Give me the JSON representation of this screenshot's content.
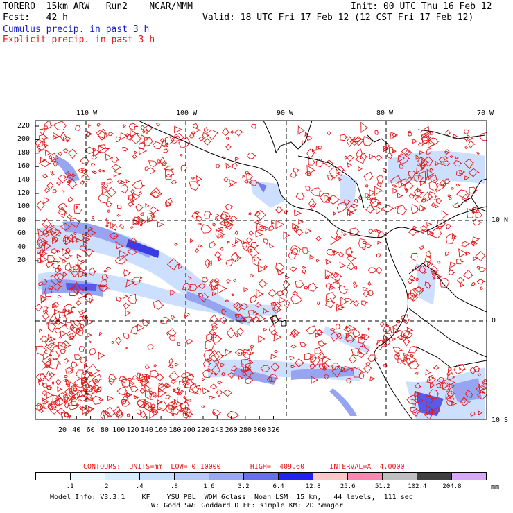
{
  "header": {
    "model": "TORERO  15km ARW   Run2    NCAR/MMM",
    "init": "Init: 00 UTC Thu 16 Feb 12",
    "fcst": "Fcst:   42 h",
    "valid": "Valid: 18 UTC Fri 17 Feb 12 (12 CST Fri 17 Feb 12)",
    "field1": "Cumulus precip. in past 3 h",
    "field2": "Explicit precip. in past 3 h"
  },
  "map": {
    "lon_labels": [
      "110 W",
      "100 W",
      "90 W",
      "80 W",
      "70 W"
    ],
    "lat_labels": [
      "10 N",
      "0",
      "10 S"
    ],
    "y_ticks": [
      "220",
      "200",
      "180",
      "160",
      "140",
      "120",
      "100",
      "80",
      "60",
      "40",
      "20"
    ],
    "x_ticks": [
      "20",
      "40",
      "60",
      "80",
      "100",
      "120",
      "140",
      "160",
      "180",
      "200",
      "220",
      "240",
      "260",
      "280",
      "300",
      "320"
    ],
    "colors": {
      "explicit_contour": "#e01818",
      "cumulus_light": "#c8dcff",
      "cumulus_mid": "#8c9cf0",
      "cumulus_dark": "#2828e0",
      "coastline": "#000000"
    }
  },
  "contour_info": {
    "label": "CONTOURS:  UNITS=mm  LOW= 0.10000       HIGH=  409.60      INTERVAL=X  4.0000"
  },
  "colorbar": {
    "labels": [
      ".1",
      ".2",
      ".4",
      ".8",
      "1.6",
      "3.2",
      "6.4",
      "12.8",
      "25.6",
      "51.2",
      "102.4",
      "204.8"
    ],
    "unit": "mm",
    "colors": [
      "#ffffff",
      "#f0f8ff",
      "#d8ecff",
      "#c8e0ff",
      "#b8c8f8",
      "#9aa8f0",
      "#6870e8",
      "#2020f0",
      "#ffc8c8",
      "#f888b0",
      "#c0c0c0",
      "#404040",
      "#d8a8f8"
    ]
  },
  "model_info": {
    "line1": "Model Info: V3.3.1    KF    YSU PBL  WDM 6class  Noah LSM  15 km,   44 levels,  111 sec",
    "line2": "LW: Godd SW: Goddard DIFF: simple KM: 2D Smagor"
  }
}
